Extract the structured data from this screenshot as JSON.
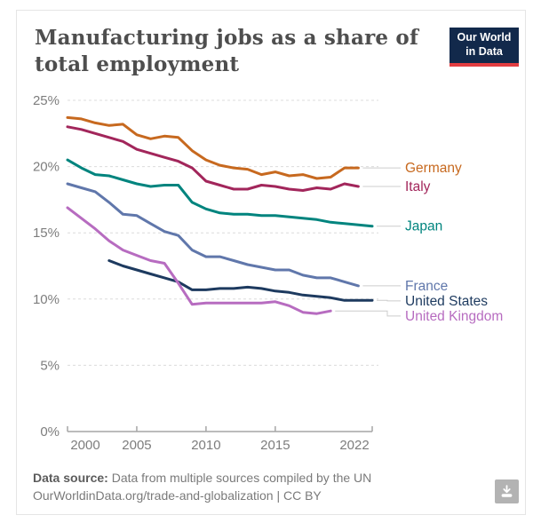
{
  "header": {
    "title_line1": "Manufacturing jobs as a share of",
    "title_line2": "total employment",
    "logo": {
      "line1": "Our World",
      "line2": "in Data",
      "bg_color": "#12294b",
      "accent_color": "#e23d41"
    }
  },
  "chart_data": {
    "type": "line",
    "title": "Manufacturing jobs as a share of total employment",
    "xlabel": "",
    "ylabel": "",
    "xlim": [
      2000,
      2022
    ],
    "ylim": [
      0,
      25
    ],
    "x_ticks": [
      2000,
      2005,
      2010,
      2015,
      2022
    ],
    "y_ticks": [
      0,
      5,
      10,
      15,
      20,
      25
    ],
    "y_tick_suffix": "%",
    "grid": "dashed horizontal gridlines",
    "legend_position": "labels at right of line ends with gray leader lines",
    "series": [
      {
        "name": "Germany",
        "color": "#c7691f",
        "start_year": 2000,
        "values": [
          23.7,
          23.6,
          23.3,
          23.1,
          23.2,
          22.4,
          22.1,
          22.3,
          22.2,
          21.2,
          20.5,
          20.1,
          19.9,
          19.8,
          19.4,
          19.6,
          19.3,
          19.4,
          19.1,
          19.2,
          19.9,
          19.9
        ]
      },
      {
        "name": "Italy",
        "color": "#a2265b",
        "start_year": 2000,
        "values": [
          23.0,
          22.8,
          22.5,
          22.2,
          21.9,
          21.3,
          21.0,
          20.7,
          20.4,
          19.9,
          18.9,
          18.6,
          18.3,
          18.3,
          18.6,
          18.5,
          18.3,
          18.2,
          18.4,
          18.3,
          18.7,
          18.5
        ]
      },
      {
        "name": "Japan",
        "color": "#00847e",
        "start_year": 2000,
        "values": [
          20.5,
          19.9,
          19.4,
          19.3,
          19.0,
          18.7,
          18.5,
          18.6,
          18.6,
          17.3,
          16.8,
          16.5,
          16.4,
          16.4,
          16.3,
          16.3,
          16.2,
          16.1,
          16.0,
          15.8,
          15.7,
          15.6,
          15.5
        ]
      },
      {
        "name": "France",
        "color": "#6077ab",
        "start_year": 2000,
        "values": [
          18.7,
          18.4,
          18.1,
          17.3,
          16.4,
          16.3,
          15.7,
          15.1,
          14.8,
          13.7,
          13.2,
          13.2,
          12.9,
          12.6,
          12.4,
          12.2,
          12.2,
          11.8,
          11.6,
          11.6,
          11.3,
          11.0
        ]
      },
      {
        "name": "United States",
        "color": "#1d3a5f",
        "start_year": 2003,
        "values": [
          12.9,
          12.5,
          12.2,
          11.9,
          11.6,
          11.3,
          10.7,
          10.7,
          10.8,
          10.8,
          10.9,
          10.8,
          10.6,
          10.5,
          10.3,
          10.2,
          10.1,
          9.9,
          9.9,
          9.9
        ]
      },
      {
        "name": "United Kingdom",
        "color": "#b76cc0",
        "start_year": 2000,
        "values": [
          16.9,
          16.1,
          15.3,
          14.4,
          13.7,
          13.3,
          12.9,
          12.7,
          11.2,
          9.6,
          9.7,
          9.7,
          9.7,
          9.7,
          9.7,
          9.8,
          9.5,
          9.0,
          8.9,
          9.1
        ]
      }
    ]
  },
  "footer": {
    "source_label": "Data source:",
    "source_text": "Data from multiple sources compiled by the UN",
    "attribution": "OurWorldinData.org/trade-and-globalization | CC BY",
    "download_icon": "download-icon"
  }
}
